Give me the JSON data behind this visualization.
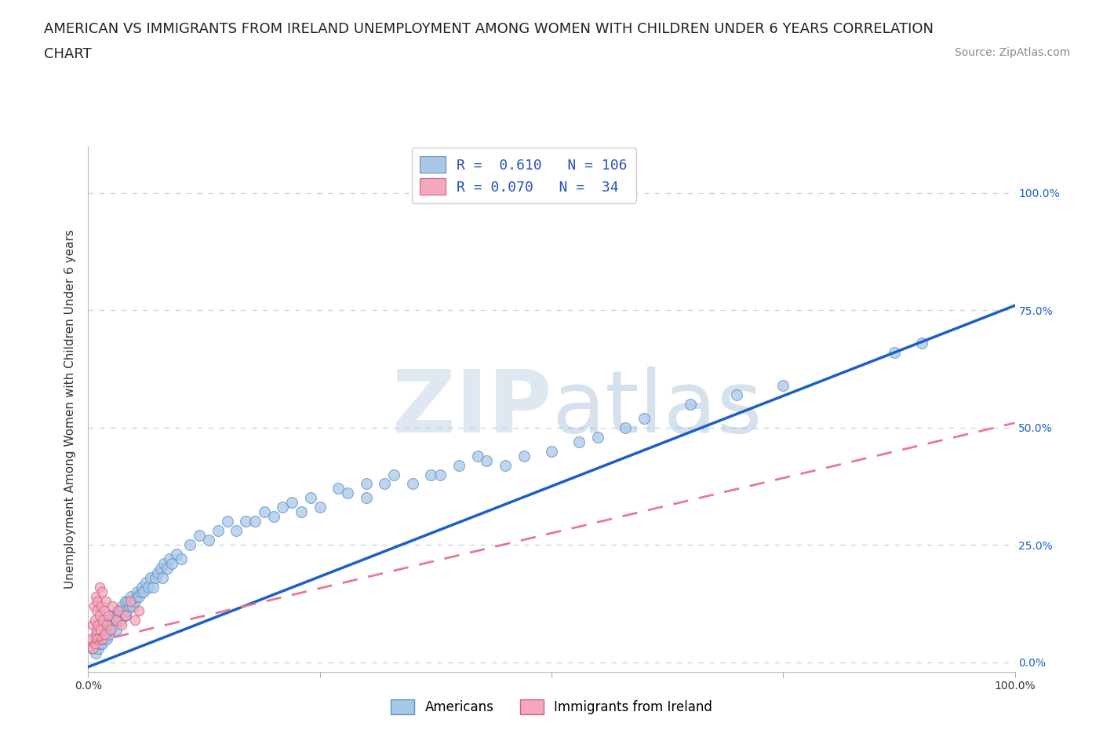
{
  "title_line1": "AMERICAN VS IMMIGRANTS FROM IRELAND UNEMPLOYMENT AMONG WOMEN WITH CHILDREN UNDER 6 YEARS CORRELATION",
  "title_line2": "CHART",
  "source": "Source: ZipAtlas.com",
  "ylabel": "Unemployment Among Women with Children Under 6 years",
  "xlim": [
    0.0,
    1.0
  ],
  "ylim": [
    -0.02,
    1.1
  ],
  "yticks": [
    0.0,
    0.25,
    0.5,
    0.75,
    1.0
  ],
  "ytick_labels": [
    "0.0%",
    "25.0%",
    "50.0%",
    "75.0%",
    "100.0%"
  ],
  "xticks": [
    0.0,
    0.25,
    0.5,
    0.75,
    1.0
  ],
  "xtick_labels": [
    "0.0%",
    "",
    "",
    "",
    "100.0%"
  ],
  "americans_R": 0.61,
  "americans_N": 106,
  "ireland_R": 0.07,
  "ireland_N": 34,
  "blue_color": "#A8C8E8",
  "pink_color": "#F4A8BC",
  "blue_edge_color": "#6090C0",
  "pink_edge_color": "#D06080",
  "blue_line_color": "#1A5FC8",
  "pink_line_color": "#E87890",
  "legend_text_color": "#2A50C0",
  "watermark_color": "#C8D8E8",
  "watermark_text": "ZIPatlas",
  "background_color": "#FFFFFF",
  "grid_color": "#C8D8E8",
  "title_fontsize": 13,
  "source_fontsize": 10,
  "legend_fontsize": 13,
  "axis_label_fontsize": 11,
  "tick_fontsize": 10,
  "blue_line_slope": 0.77,
  "blue_line_intercept": -0.01,
  "pink_line_slope": 0.47,
  "pink_line_intercept": 0.04,
  "americans_x": [
    0.005,
    0.007,
    0.008,
    0.009,
    0.01,
    0.01,
    0.011,
    0.012,
    0.012,
    0.013,
    0.014,
    0.015,
    0.015,
    0.016,
    0.016,
    0.017,
    0.017,
    0.018,
    0.018,
    0.019,
    0.02,
    0.02,
    0.021,
    0.022,
    0.023,
    0.024,
    0.025,
    0.026,
    0.027,
    0.028,
    0.03,
    0.03,
    0.031,
    0.032,
    0.033,
    0.035,
    0.036,
    0.037,
    0.038,
    0.04,
    0.04,
    0.042,
    0.043,
    0.045,
    0.046,
    0.048,
    0.05,
    0.052,
    0.053,
    0.055,
    0.057,
    0.058,
    0.06,
    0.062,
    0.065,
    0.067,
    0.07,
    0.072,
    0.075,
    0.078,
    0.08,
    0.082,
    0.085,
    0.088,
    0.09,
    0.095,
    0.1,
    0.11,
    0.12,
    0.13,
    0.14,
    0.15,
    0.16,
    0.17,
    0.18,
    0.19,
    0.2,
    0.21,
    0.22,
    0.23,
    0.24,
    0.25,
    0.27,
    0.28,
    0.3,
    0.3,
    0.32,
    0.33,
    0.35,
    0.37,
    0.38,
    0.4,
    0.42,
    0.43,
    0.45,
    0.47,
    0.5,
    0.53,
    0.55,
    0.58,
    0.6,
    0.65,
    0.7,
    0.75,
    0.87,
    0.9
  ],
  "americans_y": [
    0.03,
    0.05,
    0.02,
    0.04,
    0.04,
    0.06,
    0.03,
    0.05,
    0.07,
    0.04,
    0.06,
    0.04,
    0.07,
    0.05,
    0.08,
    0.05,
    0.07,
    0.06,
    0.09,
    0.07,
    0.05,
    0.08,
    0.07,
    0.06,
    0.08,
    0.07,
    0.09,
    0.08,
    0.1,
    0.08,
    0.07,
    0.1,
    0.09,
    0.11,
    0.1,
    0.09,
    0.11,
    0.12,
    0.1,
    0.1,
    0.13,
    0.11,
    0.13,
    0.12,
    0.14,
    0.12,
    0.13,
    0.14,
    0.15,
    0.14,
    0.15,
    0.16,
    0.15,
    0.17,
    0.16,
    0.18,
    0.16,
    0.18,
    0.19,
    0.2,
    0.18,
    0.21,
    0.2,
    0.22,
    0.21,
    0.23,
    0.22,
    0.25,
    0.27,
    0.26,
    0.28,
    0.3,
    0.28,
    0.3,
    0.3,
    0.32,
    0.31,
    0.33,
    0.34,
    0.32,
    0.35,
    0.33,
    0.37,
    0.36,
    0.35,
    0.38,
    0.38,
    0.4,
    0.38,
    0.4,
    0.4,
    0.42,
    0.44,
    0.43,
    0.42,
    0.44,
    0.45,
    0.47,
    0.48,
    0.5,
    0.52,
    0.55,
    0.57,
    0.59,
    0.66,
    0.68
  ],
  "ireland_x": [
    0.003,
    0.005,
    0.005,
    0.006,
    0.007,
    0.007,
    0.008,
    0.008,
    0.009,
    0.009,
    0.01,
    0.01,
    0.011,
    0.012,
    0.012,
    0.013,
    0.014,
    0.015,
    0.015,
    0.016,
    0.017,
    0.018,
    0.019,
    0.02,
    0.022,
    0.024,
    0.026,
    0.03,
    0.033,
    0.036,
    0.04,
    0.045,
    0.05,
    0.055
  ],
  "ireland_y": [
    0.05,
    0.03,
    0.08,
    0.12,
    0.04,
    0.09,
    0.06,
    0.14,
    0.07,
    0.11,
    0.05,
    0.13,
    0.08,
    0.1,
    0.16,
    0.07,
    0.12,
    0.05,
    0.15,
    0.09,
    0.11,
    0.06,
    0.13,
    0.08,
    0.1,
    0.07,
    0.12,
    0.09,
    0.11,
    0.08,
    0.1,
    0.13,
    0.09,
    0.11
  ]
}
